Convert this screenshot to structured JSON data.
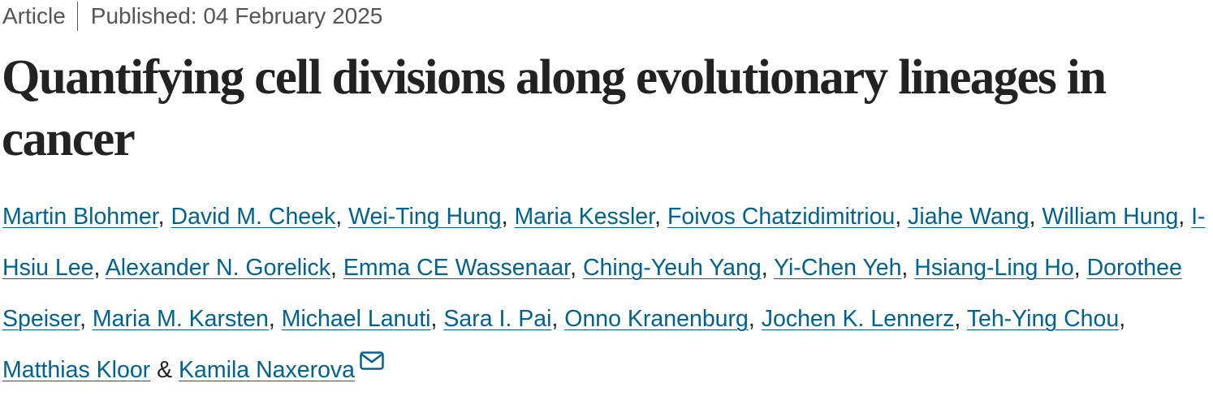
{
  "header": {
    "article_type": "Article",
    "published_label": "Published:",
    "published_date": "04 February 2025"
  },
  "title": "Quantifying cell divisions along evolutionary lineages in cancer",
  "authors": {
    "names": [
      "Martin Blohmer",
      "David M. Cheek",
      "Wei-Ting Hung",
      "Maria Kessler",
      "Foivos Chatzidimitriou",
      "Jiahe Wang",
      "William Hung",
      "I-Hsiu Lee",
      "Alexander N. Gorelick",
      "Emma CE Wassenaar",
      "Ching-Yeuh Yang",
      "Yi-Chen Yeh",
      "Hsiang-Ling Ho",
      "Dorothee Speiser",
      "Maria M. Karsten",
      "Michael Lanuti",
      "Sara I. Pai",
      "Onno Kranenburg",
      "Jochen K. Lennerz",
      "Teh-Ying Chou",
      "Matthias Kloor",
      "Kamila Naxerova"
    ],
    "separator": ",",
    "last_separator": "&"
  }
}
